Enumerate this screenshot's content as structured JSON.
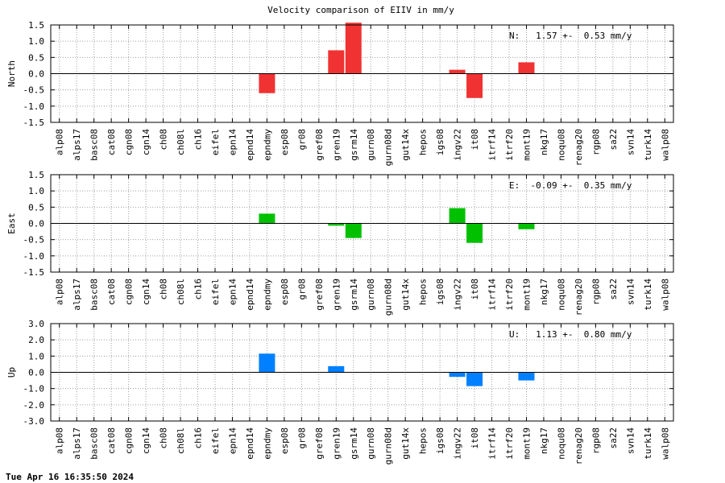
{
  "title": "Velocity comparison of EIIV in mm/y",
  "timestamp": "Tue Apr 16 16:35:50 2024",
  "chart_data": {
    "type": "bar",
    "categories": [
      "alp08",
      "alps17",
      "basc08",
      "cat08",
      "cgn08",
      "cgn14",
      "ch08",
      "ch08l",
      "ch16",
      "eifel",
      "epn14",
      "epnd14",
      "epndmy",
      "esp08",
      "gr08",
      "gref08",
      "gren19",
      "gsrm14",
      "gurn08",
      "gurn08d",
      "gut14x",
      "hepos",
      "igs08",
      "ingv22",
      "it08",
      "itrf14",
      "itrf20",
      "mont19",
      "nkg17",
      "noqu08",
      "renag20",
      "rgp08",
      "sa22",
      "svn14",
      "turk14",
      "walp08"
    ],
    "grid": true,
    "panels": [
      {
        "ylabel": "North",
        "color": "#f03232",
        "ylim": [
          -1.5,
          1.5
        ],
        "yticks": [
          "1.5",
          "1.0",
          "0.5",
          "0.0",
          "-0.5",
          "-1.0",
          "-1.5"
        ],
        "ytick_values": [
          1.5,
          1.0,
          0.5,
          0.0,
          -0.5,
          -1.0,
          -1.5
        ],
        "annotation": "N:   1.57 +-  0.53 mm/y",
        "values": [
          0,
          0,
          0,
          0,
          0,
          0,
          0,
          0,
          0,
          0,
          0,
          0,
          -0.6,
          0,
          0,
          0,
          0.72,
          1.57,
          0,
          0,
          0,
          0,
          0,
          0.12,
          -0.75,
          0,
          0,
          0.35,
          0,
          0,
          0,
          0,
          0,
          0,
          0,
          0
        ]
      },
      {
        "ylabel": "East",
        "color": "#00c000",
        "ylim": [
          -1.5,
          1.5
        ],
        "yticks": [
          "1.5",
          "1.0",
          "0.5",
          "0.0",
          "-0.5",
          "-1.0",
          "-1.5"
        ],
        "ytick_values": [
          1.5,
          1.0,
          0.5,
          0.0,
          -0.5,
          -1.0,
          -1.5
        ],
        "annotation": "E:  -0.09 +-  0.35 mm/y",
        "values": [
          0,
          0,
          0,
          0,
          0,
          0,
          0,
          0,
          0,
          0,
          0,
          0,
          0.3,
          0,
          0,
          0,
          -0.07,
          -0.45,
          0,
          0,
          0,
          0,
          0,
          0.47,
          -0.6,
          0,
          0,
          -0.18,
          0,
          0,
          0,
          0,
          0,
          0,
          0,
          0
        ]
      },
      {
        "ylabel": "Up",
        "color": "#0080ff",
        "ylim": [
          -3.0,
          3.0
        ],
        "yticks": [
          "3.0",
          "2.0",
          "1.0",
          "0.0",
          "-1.0",
          "-2.0",
          "-3.0"
        ],
        "ytick_values": [
          3.0,
          2.0,
          1.0,
          0.0,
          -1.0,
          -2.0,
          -3.0
        ],
        "annotation": "U:   1.13 +-  0.80 mm/y",
        "values": [
          0,
          0,
          0,
          0,
          0,
          0,
          0,
          0,
          0,
          0,
          0,
          0,
          1.15,
          0,
          0,
          0,
          0.38,
          0,
          0,
          0,
          0,
          0,
          0,
          -0.28,
          -0.85,
          0,
          0,
          -0.5,
          0,
          0,
          0,
          0,
          0,
          0,
          0,
          0
        ]
      }
    ]
  }
}
